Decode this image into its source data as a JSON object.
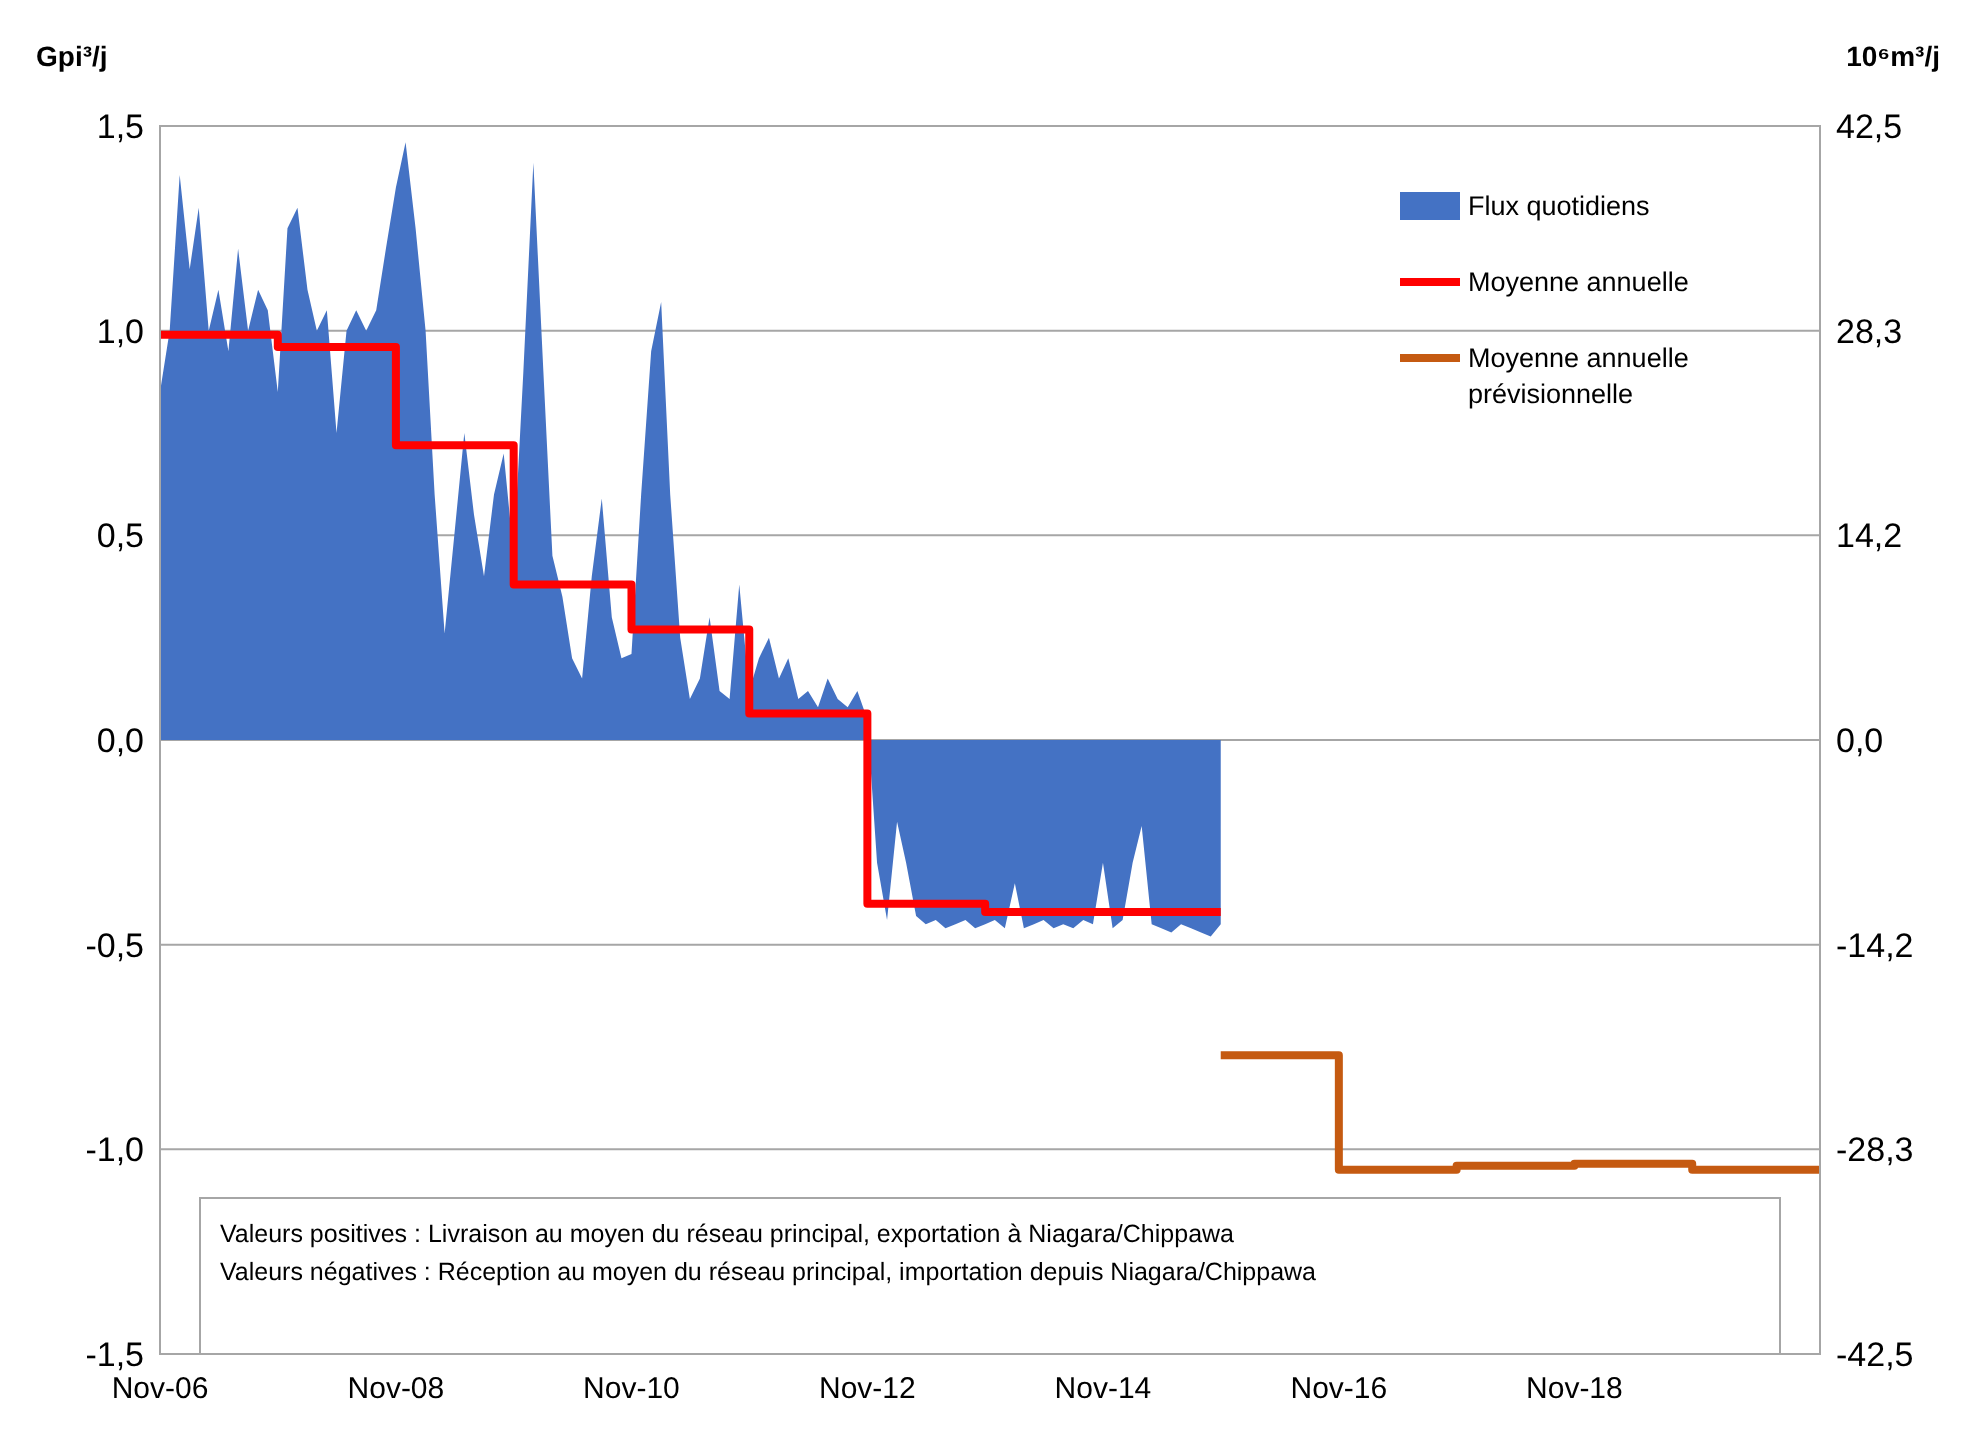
{
  "chart_data": {
    "type": "area",
    "ylabel": "Gpi³/j",
    "y2label": "10⁶m³/j",
    "xlim": [
      "2006-11",
      "2020-12"
    ],
    "xticks": [
      {
        "value": "2006-11",
        "label": "Nov-06"
      },
      {
        "value": "2008-11",
        "label": "Nov-08"
      },
      {
        "value": "2010-11",
        "label": "Nov-10"
      },
      {
        "value": "2012-11",
        "label": "Nov-12"
      },
      {
        "value": "2014-11",
        "label": "Nov-14"
      },
      {
        "value": "2016-11",
        "label": "Nov-16"
      },
      {
        "value": "2018-11",
        "label": "Nov-18"
      }
    ],
    "ylim": [
      -1.5,
      1.5
    ],
    "yticks": [
      {
        "value": -1.5,
        "label": "-1,5"
      },
      {
        "value": -1,
        "label": "-1,0"
      },
      {
        "value": -0.5,
        "label": "-0,5"
      },
      {
        "value": 0,
        "label": "0,0"
      },
      {
        "value": 0.5,
        "label": "0,5"
      },
      {
        "value": 1,
        "label": "1,0"
      },
      {
        "value": 1.5,
        "label": "1,5"
      }
    ],
    "y2lim": [
      -42.5,
      42.5
    ],
    "y2ticks": [
      {
        "value": -42.5,
        "label": "-42,5"
      },
      {
        "value": -28.3,
        "label": "-28,3"
      },
      {
        "value": -14.2,
        "label": "-14,2"
      },
      {
        "value": 0,
        "label": "0,0"
      },
      {
        "value": 14.2,
        "label": "14,2"
      },
      {
        "value": 28.3,
        "label": "28,3"
      },
      {
        "value": 42.5,
        "label": "42,5"
      }
    ],
    "grid": "y",
    "legend": "top right",
    "annotations": [
      "Valeurs positives : Livraison au moyen du réseau principal, exportation à Niagara/Chippawa",
      "Valeurs négatives : Réception au moyen du réseau principal, importation depuis Niagara/Chippawa"
    ],
    "series": [
      {
        "name": "Flux quotidiens",
        "color": "#4472c4",
        "x": [
          "2006-11",
          "2006-12",
          "2007-01",
          "2007-02",
          "2007-03",
          "2007-04",
          "2007-05",
          "2007-06",
          "2007-07",
          "2007-08",
          "2007-09",
          "2007-10",
          "2007-11",
          "2007-12",
          "2008-01",
          "2008-02",
          "2008-03",
          "2008-04",
          "2008-05",
          "2008-06",
          "2008-07",
          "2008-08",
          "2008-09",
          "2008-10",
          "2008-11",
          "2008-12",
          "2009-01",
          "2009-02",
          "2009-03",
          "2009-04",
          "2009-05",
          "2009-06",
          "2009-07",
          "2009-08",
          "2009-09",
          "2009-10",
          "2009-11",
          "2009-12",
          "2010-01",
          "2010-02",
          "2010-03",
          "2010-04",
          "2010-05",
          "2010-06",
          "2010-07",
          "2010-08",
          "2010-09",
          "2010-10",
          "2010-11",
          "2010-12",
          "2011-01",
          "2011-02",
          "2011-03",
          "2011-04",
          "2011-05",
          "2011-06",
          "2011-07",
          "2011-08",
          "2011-09",
          "2011-10",
          "2011-11",
          "2011-12",
          "2012-01",
          "2012-02",
          "2012-03",
          "2012-04",
          "2012-05",
          "2012-06",
          "2012-07",
          "2012-08",
          "2012-09",
          "2012-10",
          "2012-11",
          "2012-12",
          "2013-01",
          "2013-02",
          "2013-03",
          "2013-04",
          "2013-05",
          "2013-06",
          "2013-07",
          "2013-08",
          "2013-09",
          "2013-10",
          "2013-11",
          "2013-12",
          "2014-01",
          "2014-02",
          "2014-03",
          "2014-04",
          "2014-05",
          "2014-06",
          "2014-07",
          "2014-08",
          "2014-09",
          "2014-10",
          "2014-11",
          "2014-12",
          "2015-01",
          "2015-02",
          "2015-03",
          "2015-04",
          "2015-05",
          "2015-06",
          "2015-07",
          "2015-08",
          "2015-09",
          "2015-10",
          "2015-11"
        ],
        "values": [
          0.85,
          1.0,
          1.38,
          1.15,
          1.3,
          1.0,
          1.1,
          0.95,
          1.2,
          1.0,
          1.1,
          1.05,
          0.85,
          1.25,
          1.3,
          1.1,
          1.0,
          1.05,
          0.75,
          1.0,
          1.05,
          1.0,
          1.05,
          1.2,
          1.35,
          1.46,
          1.25,
          1.0,
          0.6,
          0.26,
          0.5,
          0.75,
          0.55,
          0.4,
          0.6,
          0.7,
          0.45,
          0.9,
          1.41,
          0.9,
          0.45,
          0.35,
          0.2,
          0.15,
          0.4,
          0.59,
          0.3,
          0.2,
          0.21,
          0.6,
          0.95,
          1.07,
          0.6,
          0.25,
          0.1,
          0.15,
          0.3,
          0.12,
          0.1,
          0.38,
          0.12,
          0.2,
          0.25,
          0.15,
          0.2,
          0.1,
          0.12,
          0.08,
          0.15,
          0.1,
          0.08,
          0.12,
          0.05,
          -0.3,
          -0.44,
          -0.2,
          -0.3,
          -0.43,
          -0.45,
          -0.44,
          -0.46,
          -0.45,
          -0.44,
          -0.46,
          -0.45,
          -0.44,
          -0.46,
          -0.35,
          -0.46,
          -0.45,
          -0.44,
          -0.46,
          -0.45,
          -0.46,
          -0.44,
          -0.45,
          -0.3,
          -0.46,
          -0.44,
          -0.3,
          -0.21,
          -0.45,
          -0.46,
          -0.47,
          -0.45,
          -0.46,
          -0.47,
          -0.48,
          -0.45
        ]
      },
      {
        "name": "Moyenne annuelle",
        "type": "step",
        "color": "#ff0000",
        "x": [
          "2006-11",
          "2007-11",
          "2008-11",
          "2009-11",
          "2010-11",
          "2011-11",
          "2012-11",
          "2013-11",
          "2015-11"
        ],
        "values": [
          0.99,
          0.96,
          0.72,
          0.38,
          0.27,
          0.065,
          -0.4,
          -0.42,
          -0.42
        ]
      },
      {
        "name": "Moyenne annuelle prévisionnelle",
        "type": "step",
        "color": "#c55a11",
        "x": [
          "2015-11",
          "2016-11",
          "2017-11",
          "2018-11",
          "2019-11",
          "2020-12"
        ],
        "values": [
          -0.77,
          -1.05,
          -1.04,
          -1.035,
          -1.05,
          -1.05
        ]
      }
    ]
  }
}
